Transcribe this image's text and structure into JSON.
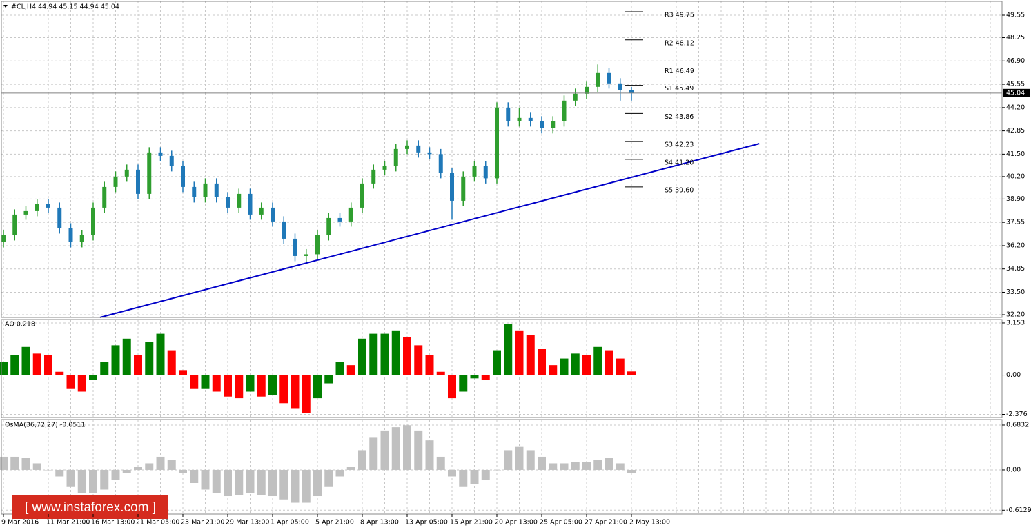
{
  "chart_data": [
    {
      "type": "candlestick",
      "title": "#CL,H4  44.94 45.15 44.94 45.04",
      "up_color": "#2f9e2f",
      "down_color": "#1f78b8",
      "categories": [
        "9 Mar 2016",
        null,
        null,
        null,
        "11 Mar 21:00",
        null,
        null,
        null,
        "16 Mar 13:00",
        null,
        null,
        null,
        "21 Mar 05:00",
        null,
        null,
        null,
        "23 Mar 21:00",
        null,
        null,
        null,
        "29 Mar 13:00",
        null,
        null,
        null,
        "1 Apr 05:00",
        null,
        null,
        null,
        "5 Apr 21:00",
        null,
        null,
        null,
        "8 Apr 13:00",
        null,
        null,
        null,
        "13 Apr 05:00",
        null,
        null,
        null,
        "15 Apr 21:00",
        null,
        null,
        null,
        "20 Apr 13:00",
        null,
        null,
        null,
        "25 Apr 05:00",
        null,
        null,
        null,
        "27 Apr 21:00",
        null,
        null,
        null,
        "2 May 13:00"
      ],
      "open": [
        36.4,
        36.8,
        38.0,
        38.2,
        38.6,
        38.4,
        37.2,
        36.4,
        36.8,
        38.4,
        39.6,
        40.2,
        40.6,
        39.2,
        41.6,
        41.4,
        40.8,
        39.6,
        39.0,
        39.8,
        39.0,
        38.4,
        39.2,
        38.0,
        38.4,
        37.6,
        36.6,
        35.6,
        35.7,
        36.8,
        37.8,
        37.6,
        38.4,
        39.8,
        40.6,
        40.8,
        41.8,
        42.0,
        41.6,
        41.5,
        40.4,
        38.8,
        40.2,
        40.8,
        40.1,
        44.2,
        43.4,
        43.6,
        43.4,
        43.0,
        43.4,
        44.6,
        45.0,
        45.4,
        46.2,
        45.6,
        45.2
      ],
      "high": [
        37.1,
        38.3,
        38.5,
        38.9,
        38.9,
        38.7,
        37.5,
        37.1,
        38.7,
        39.9,
        40.5,
        40.9,
        40.9,
        41.9,
        41.9,
        41.7,
        41.1,
        39.9,
        40.1,
        40.1,
        39.3,
        39.5,
        39.5,
        38.7,
        38.7,
        37.9,
        36.9,
        36.0,
        37.1,
        38.1,
        38.1,
        38.7,
        40.1,
        40.9,
        41.1,
        42.1,
        42.3,
        42.3,
        41.9,
        41.8,
        40.7,
        40.5,
        41.1,
        41.1,
        44.5,
        44.5,
        44.2,
        43.9,
        43.7,
        43.7,
        44.9,
        45.3,
        45.7,
        46.7,
        46.5,
        45.9,
        45.4
      ],
      "low": [
        36.1,
        36.5,
        37.7,
        37.9,
        38.1,
        36.9,
        36.1,
        36.1,
        36.5,
        38.1,
        39.3,
        39.9,
        38.9,
        38.9,
        41.1,
        40.5,
        39.3,
        38.7,
        38.7,
        38.7,
        38.1,
        38.1,
        37.7,
        37.7,
        37.3,
        36.3,
        35.3,
        35.2,
        35.4,
        36.5,
        37.3,
        37.3,
        38.1,
        39.5,
        40.3,
        40.5,
        41.5,
        41.3,
        41.2,
        40.1,
        37.7,
        38.5,
        39.9,
        39.8,
        39.8,
        43.1,
        43.1,
        43.1,
        42.7,
        42.7,
        43.1,
        44.3,
        44.7,
        45.1,
        45.3,
        44.6,
        44.6
      ],
      "close": [
        36.8,
        38.0,
        38.2,
        38.6,
        38.4,
        37.2,
        36.4,
        36.8,
        38.4,
        39.6,
        40.2,
        40.6,
        39.2,
        41.6,
        41.4,
        40.8,
        39.6,
        39.0,
        39.8,
        39.0,
        38.4,
        39.2,
        38.0,
        38.4,
        37.6,
        36.6,
        35.6,
        35.7,
        36.8,
        37.8,
        37.6,
        38.4,
        39.8,
        40.6,
        40.8,
        41.8,
        42.0,
        41.6,
        41.5,
        40.4,
        38.8,
        40.2,
        40.8,
        40.1,
        44.2,
        43.4,
        43.6,
        43.4,
        43.0,
        43.4,
        44.6,
        45.0,
        45.4,
        46.2,
        45.6,
        45.2,
        45.04
      ],
      "current_price": 45.04,
      "ylim": [
        32.04,
        50.35
      ],
      "yticks": [
        49.55,
        48.25,
        {
          "value": 46.9,
          "label": "46.90"
        },
        45.55,
        {
          "value": 44.2,
          "label": "44.20"
        },
        42.85,
        {
          "value": 41.5,
          "label": "41.50"
        },
        {
          "value": 40.2,
          "label": "40.20"
        },
        {
          "value": 38.9,
          "label": "38.90"
        },
        37.55,
        {
          "value": 36.2,
          "label": "36.20"
        },
        34.85,
        {
          "value": 33.5,
          "label": "33.50"
        },
        {
          "value": 32.2,
          "label": "32.20"
        }
      ],
      "grid": true,
      "levels": [
        {
          "label": "R3 49.75",
          "value": 49.75
        },
        {
          "label": "R2 48.12",
          "value": 48.12
        },
        {
          "label": "R1 46.49",
          "value": 46.49
        },
        {
          "label": "S1 45.49",
          "value": 45.49
        },
        {
          "label": "S2 43.86",
          "value": 43.86
        },
        {
          "label": "S3 42.23",
          "value": 42.23
        },
        {
          "label": "S4 41.20",
          "value": 41.2
        },
        {
          "label": "S5 39.60",
          "value": 39.6
        }
      ],
      "trendline": {
        "color": "#0000c8",
        "x": [
          8.6,
          67.4
        ],
        "y": [
          32.04,
          42.11
        ]
      }
    },
    {
      "type": "bar",
      "title": "AO 0.218",
      "up_color": "#008000",
      "down_color": "#ff0000",
      "values": [
        0.8,
        1.2,
        1.7,
        1.3,
        1.2,
        0.2,
        -0.8,
        -1.0,
        -0.3,
        0.8,
        1.8,
        2.2,
        1.2,
        2.0,
        2.5,
        1.5,
        0.3,
        -0.8,
        -0.8,
        -1.0,
        -1.3,
        -1.4,
        -1.0,
        -1.3,
        -1.2,
        -1.7,
        -2.0,
        -2.3,
        -1.4,
        -0.5,
        0.8,
        0.6,
        2.2,
        2.5,
        2.5,
        2.7,
        2.3,
        1.8,
        1.2,
        0.2,
        -1.4,
        -1.0,
        -0.2,
        -0.3,
        1.5,
        3.1,
        2.7,
        2.4,
        1.6,
        0.6,
        1.0,
        1.3,
        1.2,
        1.7,
        1.5,
        1.0,
        0.218
      ],
      "ylim": [
        -2.564,
        3.36
      ],
      "yticks": [
        3.153,
        {
          "value": 0,
          "label": "0.00"
        },
        -2.376
      ],
      "grid": true
    },
    {
      "type": "bar",
      "title": "OsMA(36,72,27) -0.0511",
      "color": "#c0c0c0",
      "values": [
        0.2,
        0.2,
        0.18,
        0.1,
        0.0,
        -0.1,
        -0.25,
        -0.35,
        -0.35,
        -0.3,
        -0.15,
        -0.05,
        0.05,
        0.1,
        0.2,
        0.15,
        -0.05,
        -0.2,
        -0.3,
        -0.35,
        -0.4,
        -0.38,
        -0.35,
        -0.38,
        -0.4,
        -0.45,
        -0.5,
        -0.5,
        -0.4,
        -0.25,
        -0.1,
        0.05,
        0.3,
        0.5,
        0.6,
        0.65,
        0.68,
        0.6,
        0.45,
        0.2,
        -0.1,
        -0.25,
        -0.22,
        -0.15,
        0.0,
        0.3,
        0.35,
        0.3,
        0.2,
        0.1,
        0.1,
        0.12,
        0.12,
        0.15,
        0.18,
        0.1,
        -0.0511
      ],
      "ylim": [
        -0.673,
        0.767
      ],
      "yticks": [
        0.6832,
        {
          "value": 0,
          "label": "0.00"
        },
        -0.6129
      ],
      "grid": true
    }
  ],
  "watermark": "[ www.instaforex.com ]"
}
